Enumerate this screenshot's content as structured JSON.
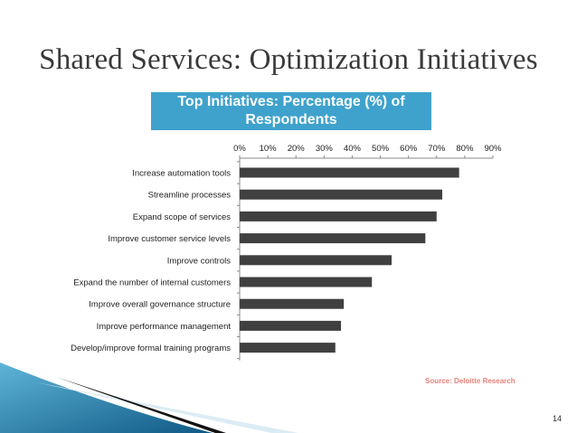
{
  "slide": {
    "title": "Shared Services: Optimization Initiatives",
    "source": "Source: Deloitte Research",
    "page_number": "14"
  },
  "colors": {
    "bar": "#404040",
    "title_box": "#3fa2cc",
    "source_text": "#e8827a",
    "deco_blue": "#1e6e9a",
    "deco_black": "#111111"
  },
  "chart_data": {
    "type": "bar",
    "orientation": "horizontal",
    "title": "Top Initiatives: Percentage (%) of Respondents",
    "categories": [
      "Increase automation tools",
      "Streamline processes",
      "Expand scope of services",
      "Improve customer service levels",
      "Improve controls",
      "Expand the number of internal customers",
      "Improve overall governance structure",
      "Improve performance management",
      "Develop/improve formal training programs"
    ],
    "values": [
      78,
      72,
      70,
      66,
      54,
      47,
      37,
      36,
      34
    ],
    "xlim": [
      0,
      90
    ],
    "xticks": [
      0,
      10,
      20,
      30,
      40,
      50,
      60,
      70,
      80,
      90
    ],
    "tick_format": "{v}%",
    "xlabel": "",
    "ylabel": "",
    "grid": false,
    "axis_position": "top"
  }
}
